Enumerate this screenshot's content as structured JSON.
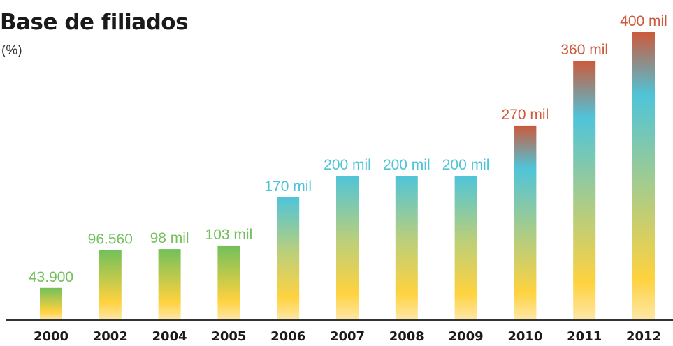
{
  "chart_data": {
    "type": "bar",
    "title": "Base de filiados",
    "subtitle": "(%)",
    "xlabel": "",
    "ylabel": "",
    "categories": [
      "2000",
      "2002",
      "2004",
      "2005",
      "2006",
      "2007",
      "2008",
      "2009",
      "2010",
      "2011",
      "2012"
    ],
    "values": [
      43900,
      96560,
      98000,
      103000,
      170000,
      200000,
      200000,
      200000,
      270000,
      360000,
      400000
    ],
    "data_labels": [
      "43.900",
      "96.560",
      "98 mil",
      "103 mil",
      "170 mil",
      "200 mil",
      "200 mil",
      "200 mil",
      "270 mil",
      "360 mil",
      "400 mil"
    ],
    "ylim": [
      0,
      400000
    ],
    "grid": false,
    "legend": "none",
    "colors": {
      "base": "#fde7a6",
      "yellow": "#ffd23f",
      "green": "#72c05b",
      "cyan": "#4fc4d9",
      "red": "#cc5a3c",
      "axis": "#333333"
    }
  }
}
